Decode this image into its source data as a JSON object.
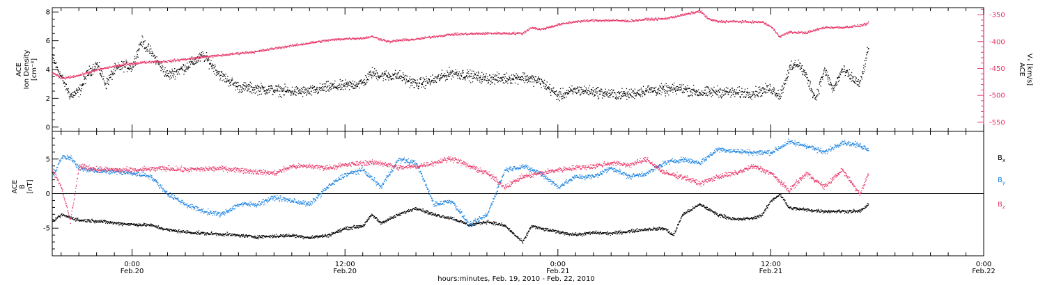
{
  "colors": {
    "black": "#000000",
    "pink": "#e8386a",
    "blue": "#1a82e0"
  },
  "x_axis": {
    "range_hours": [
      -4.5,
      48.0
    ],
    "title": "hours:minutes, Feb. 19, 2010 - Feb. 22, 2010",
    "ticks": [
      {
        "h": 0,
        "time": "0:00",
        "date": "Feb.20"
      },
      {
        "h": 12,
        "time": "12:00",
        "date": "Feb.20"
      },
      {
        "h": 24,
        "time": "0:00",
        "date": "Feb.21"
      },
      {
        "h": 36,
        "time": "12:00",
        "date": "Feb.21"
      },
      {
        "h": 48,
        "time": "0:00",
        "date": "Feb.22"
      }
    ]
  },
  "chart_data": [
    {
      "type": "scatter",
      "panel": "top",
      "ylabel_lines": [
        "ACE",
        "Ion Density",
        "[cm⁻³]"
      ],
      "ylim": [
        -0.3,
        8.3
      ],
      "yticks": [
        0,
        2,
        4,
        6,
        8
      ],
      "y2label_lines": [
        "ACE",
        "Vₓ [km/s]"
      ],
      "y2lim": [
        -567,
        -337
      ],
      "y2ticks": [
        -550,
        -500,
        -450,
        -400,
        -350
      ],
      "series": [
        {
          "axis": "left",
          "color": "#000000",
          "x": [
            -4.5,
            -3.5,
            -3,
            -2.5,
            -2,
            -1.5,
            -1,
            -0.5,
            0,
            0.5,
            1,
            1.5,
            2,
            3,
            4,
            4.5,
            5,
            6,
            7,
            8,
            9,
            10,
            11,
            12,
            13,
            13.5,
            14,
            15,
            16,
            17,
            18,
            19,
            20,
            21,
            22,
            23,
            24,
            25,
            26,
            27,
            28,
            29,
            30,
            31,
            32,
            33,
            34,
            35,
            36,
            36.5,
            37,
            37.5,
            38,
            38.5,
            39,
            39.5,
            40,
            40.5,
            41,
            41.5
          ],
          "y": [
            4.8,
            2.2,
            2.5,
            3.8,
            4.4,
            3.0,
            4.0,
            4.3,
            4.2,
            6.0,
            5.3,
            4.4,
            3.6,
            4.2,
            5.0,
            4.3,
            3.6,
            2.8,
            2.7,
            2.6,
            2.5,
            2.5,
            2.8,
            2.9,
            3.1,
            3.8,
            3.6,
            3.6,
            3.0,
            3.3,
            3.8,
            3.6,
            3.4,
            3.4,
            3.5,
            3.2,
            2.2,
            2.6,
            2.5,
            2.3,
            2.3,
            2.6,
            2.6,
            2.7,
            2.4,
            2.5,
            2.4,
            2.4,
            2.7,
            2.2,
            4.0,
            4.5,
            3.5,
            2.0,
            4.0,
            2.6,
            4.0,
            3.5,
            3.0,
            5.5
          ]
        },
        {
          "axis": "right",
          "color": "#e8386a",
          "x": [
            -4.5,
            -4,
            -3,
            -2,
            -1,
            0,
            1,
            2,
            3,
            4,
            5,
            6,
            7,
            8,
            9,
            10,
            11,
            12,
            13,
            13.5,
            14,
            14.5,
            15,
            16,
            17,
            18,
            19,
            20,
            21,
            22,
            22.5,
            23,
            24,
            25,
            26,
            27,
            28,
            29,
            30,
            31,
            32,
            32.5,
            33,
            34,
            35,
            35.5,
            36,
            36.5,
            37,
            38,
            39,
            40,
            41,
            41.5
          ],
          "y": [
            -457,
            -468,
            -462,
            -452,
            -445,
            -440,
            -437,
            -436,
            -432,
            -428,
            -425,
            -421,
            -418,
            -412,
            -407,
            -402,
            -397,
            -394,
            -393,
            -390,
            -395,
            -400,
            -397,
            -395,
            -390,
            -386,
            -385,
            -384,
            -384,
            -384,
            -373,
            -377,
            -368,
            -362,
            -360,
            -360,
            -361,
            -358,
            -357,
            -350,
            -343,
            -358,
            -362,
            -362,
            -363,
            -363,
            -372,
            -390,
            -382,
            -383,
            -373,
            -373,
            -370,
            -365
          ]
        }
      ]
    },
    {
      "type": "scatter",
      "panel": "bottom",
      "ylabel_lines": [
        "ACE",
        "B",
        "[nT]"
      ],
      "ylim": [
        -9.0,
        9.0
      ],
      "yticks": [
        -5,
        0,
        5
      ],
      "zero_line": true,
      "series": [
        {
          "name": "Bx",
          "label_base": "B",
          "label_sub": "x",
          "color": "#000000",
          "x": [
            -4.5,
            -4,
            -3,
            -2,
            -1,
            0,
            1,
            2,
            3,
            4,
            5,
            6,
            7,
            8,
            9,
            10,
            11,
            12,
            13,
            13.5,
            14,
            15,
            16,
            17,
            18,
            19,
            20,
            21,
            21.5,
            22,
            22.5,
            23,
            24,
            25,
            26,
            27,
            28,
            29,
            30,
            30.5,
            31,
            32,
            33,
            34,
            35,
            35.5,
            36,
            36.5,
            37,
            38,
            39,
            40,
            41,
            41.5
          ],
          "y": [
            -4.0,
            -3.0,
            -3.8,
            -3.9,
            -4.2,
            -4.4,
            -4.5,
            -5.2,
            -5.5,
            -5.7,
            -5.8,
            -6.0,
            -6.2,
            -6.1,
            -6.0,
            -6.3,
            -6.0,
            -5.0,
            -4.6,
            -3.0,
            -4.2,
            -3.0,
            -2.0,
            -3.0,
            -3.5,
            -4.5,
            -4.0,
            -4.6,
            -5.8,
            -7.0,
            -4.6,
            -5.0,
            -5.5,
            -5.9,
            -5.6,
            -5.7,
            -5.4,
            -5.1,
            -5.0,
            -6.0,
            -3.0,
            -1.5,
            -3.0,
            -3.7,
            -3.5,
            -3.0,
            -1.0,
            0.0,
            -2.0,
            -2.3,
            -2.5,
            -2.5,
            -2.5,
            -1.5
          ]
        },
        {
          "name": "By",
          "label_base": "B",
          "label_sub": "y",
          "color": "#1a82e0",
          "x": [
            -4.5,
            -4,
            -3.5,
            -3,
            -2,
            -1,
            0,
            1,
            2,
            3,
            4,
            5,
            6,
            7,
            8,
            9,
            10,
            11,
            12,
            13,
            14,
            15,
            16,
            17,
            18,
            19,
            20,
            21,
            22,
            23,
            24,
            25,
            26,
            27,
            28,
            29,
            30,
            31,
            32,
            33,
            34,
            35,
            36,
            37,
            38,
            39,
            40,
            41,
            41.5
          ],
          "y": [
            2.5,
            5.3,
            5.2,
            3.8,
            3.3,
            3.2,
            3.0,
            2.6,
            0.0,
            -1.5,
            -2.5,
            -3.0,
            -1.5,
            -1.5,
            -0.5,
            -1.0,
            -1.5,
            1.0,
            2.8,
            3.5,
            1.0,
            5.0,
            4.5,
            -1.5,
            -1.0,
            -4.5,
            -3.0,
            3.5,
            4.0,
            3.0,
            1.0,
            2.5,
            2.5,
            3.8,
            2.5,
            3.0,
            4.5,
            5.0,
            4.5,
            6.5,
            6.2,
            6.0,
            6.0,
            7.5,
            7.0,
            6.0,
            7.5,
            7.0,
            6.5
          ]
        },
        {
          "name": "Bz",
          "label_base": "B",
          "label_sub": "z",
          "color": "#e8386a",
          "x": [
            -4.5,
            -4,
            -3.5,
            -3,
            -2,
            -1,
            0,
            1,
            2,
            3,
            4,
            5,
            6,
            7,
            8,
            9,
            10,
            11,
            12,
            13,
            14,
            15,
            16,
            17,
            18,
            19,
            20,
            21,
            22,
            23,
            24,
            25,
            26,
            27,
            28,
            29,
            30,
            31,
            32,
            33,
            34,
            35,
            36,
            37,
            38,
            39,
            40,
            41,
            41.5
          ],
          "y": [
            3.5,
            1.0,
            -4.0,
            4.0,
            3.6,
            3.5,
            3.4,
            3.6,
            3.7,
            3.5,
            3.6,
            3.7,
            3.5,
            3.2,
            3.0,
            4.0,
            4.0,
            3.8,
            4.2,
            4.5,
            4.5,
            3.8,
            4.0,
            4.5,
            5.2,
            4.0,
            3.0,
            1.0,
            2.5,
            3.0,
            3.5,
            3.8,
            4.0,
            4.5,
            4.2,
            5.0,
            3.0,
            2.5,
            1.5,
            2.5,
            3.0,
            4.0,
            3.0,
            0.5,
            3.0,
            1.0,
            3.5,
            0.0,
            3.0
          ]
        }
      ]
    }
  ]
}
